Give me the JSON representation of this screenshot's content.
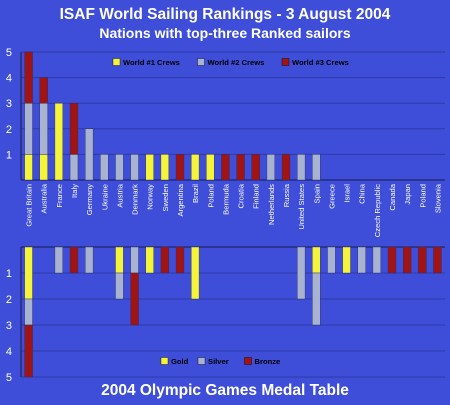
{
  "chart_data": [
    {
      "type": "bar",
      "stacked": true,
      "title": "ISAF World Sailing Rankings - 3 August 2004",
      "subtitle": "Nations with top-three Ranked sailors",
      "categories": [
        "Great Britain",
        "Australia",
        "France",
        "Italy",
        "Germany",
        "Ukraine",
        "Austria",
        "Denmark",
        "Norway",
        "Sweden",
        "Argentina",
        "Brazil",
        "Poland",
        "Bermuda",
        "Croatia",
        "Finland",
        "Netherlands",
        "Russia",
        "United States",
        "Spain",
        "Greece",
        "Israel",
        "China",
        "Czech Republic",
        "Canada",
        "Japan",
        "Poland",
        "Slovenia"
      ],
      "ylim": [
        0,
        5
      ],
      "yticks": [
        "1",
        "2",
        "3",
        "4",
        "5"
      ],
      "grid": true,
      "legend_position": "top-center",
      "series": [
        {
          "name": "World #1 Crews",
          "color": "#f4f43a",
          "values": [
            1,
            1,
            3,
            0,
            0,
            0,
            0,
            0,
            1,
            1,
            0,
            1,
            1,
            0,
            0,
            0,
            0,
            0,
            0,
            0,
            0,
            0,
            0,
            0,
            0,
            0,
            0,
            0
          ]
        },
        {
          "name": "World #2 Crews",
          "color": "#a7b3d0",
          "values": [
            2,
            2,
            0,
            1,
            2,
            1,
            1,
            1,
            0,
            0,
            0,
            0,
            0,
            0,
            0,
            0,
            1,
            0,
            1,
            1,
            0,
            0,
            0,
            0,
            0,
            0,
            0,
            0
          ]
        },
        {
          "name": "World #3 Crews",
          "color": "#a01414",
          "values": [
            2,
            1,
            0,
            2,
            0,
            0,
            0,
            0,
            0,
            0,
            1,
            0,
            0,
            1,
            1,
            1,
            0,
            1,
            0,
            0,
            0,
            0,
            0,
            0,
            0,
            0,
            0,
            0
          ]
        }
      ]
    },
    {
      "type": "bar",
      "stacked": true,
      "inverted_y": true,
      "title": "2004 Olympic Games Medal Table",
      "categories": [
        "Great Britain",
        "Australia",
        "France",
        "Italy",
        "Germany",
        "Ukraine",
        "Austria",
        "Denmark",
        "Norway",
        "Sweden",
        "Argentina",
        "Brazil",
        "Poland",
        "Bermuda",
        "Croatia",
        "Finland",
        "Netherlands",
        "Russia",
        "United States",
        "Spain",
        "Greece",
        "Israel",
        "China",
        "Czech Republic",
        "Canada",
        "Japan",
        "Poland",
        "Slovenia"
      ],
      "ylim": [
        0,
        5
      ],
      "yticks": [
        "1",
        "2",
        "3",
        "4",
        "5"
      ],
      "grid": true,
      "legend_position": "bottom-center",
      "series": [
        {
          "name": "Gold",
          "color": "#f4f43a",
          "values": [
            2,
            0,
            0,
            0,
            0,
            0,
            1,
            0,
            1,
            0,
            0,
            2,
            0,
            0,
            0,
            0,
            0,
            0,
            0,
            1,
            0,
            1,
            0,
            0,
            0,
            0,
            0,
            0
          ]
        },
        {
          "name": "Silver",
          "color": "#a7b3d0",
          "values": [
            1,
            0,
            1,
            0,
            1,
            0,
            1,
            1,
            0,
            0,
            0,
            0,
            0,
            0,
            0,
            0,
            0,
            0,
            2,
            2,
            1,
            0,
            1,
            1,
            0,
            0,
            0,
            0
          ]
        },
        {
          "name": "Bronze",
          "color": "#a01414",
          "values": [
            2,
            0,
            0,
            1,
            0,
            0,
            0,
            2,
            0,
            1,
            1,
            0,
            0,
            0,
            0,
            0,
            0,
            0,
            0,
            0,
            0,
            0,
            0,
            0,
            1,
            1,
            1,
            1
          ]
        }
      ]
    }
  ]
}
